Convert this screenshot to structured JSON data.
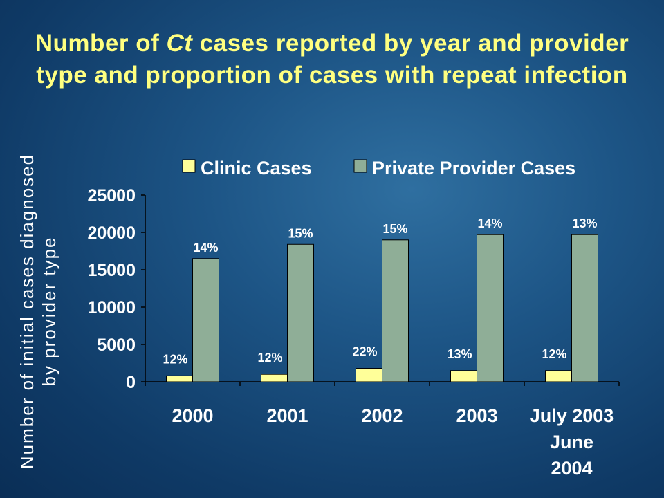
{
  "title": {
    "pre": "Number of ",
    "em": "Ct",
    "post": " cases reported by year and provider type and proportion of cases with repeat infection"
  },
  "colors": {
    "background": "#154a7a",
    "title_text": "#ffff80",
    "axis_text": "#ffffff",
    "label_text": "#ffffff",
    "clinic": "#ffff99",
    "private": "#8fae97"
  },
  "chart_data": {
    "type": "bar",
    "ylabel_lines": [
      "Number of initial cases diagnosed",
      "by provider type"
    ],
    "categories": [
      [
        "2000"
      ],
      [
        "2001"
      ],
      [
        "2002"
      ],
      [
        "2003"
      ],
      [
        "July 2003",
        "June",
        "2004"
      ]
    ],
    "series": [
      {
        "name": "Clinic Cases",
        "values": [
          800,
          1000,
          1800,
          1500,
          1500
        ],
        "labels": [
          "12%",
          "12%",
          "22%",
          "13%",
          "12%"
        ]
      },
      {
        "name": "Private Provider Cases",
        "values": [
          16500,
          18400,
          19000,
          19700,
          19700
        ],
        "labels": [
          "14%",
          "15%",
          "15%",
          "14%",
          "13%"
        ]
      }
    ],
    "yticks": [
      "0",
      "5000",
      "10000",
      "15000",
      "20000",
      "25000"
    ],
    "ylim": [
      0,
      25000
    ],
    "grid": false,
    "legend": "top"
  }
}
